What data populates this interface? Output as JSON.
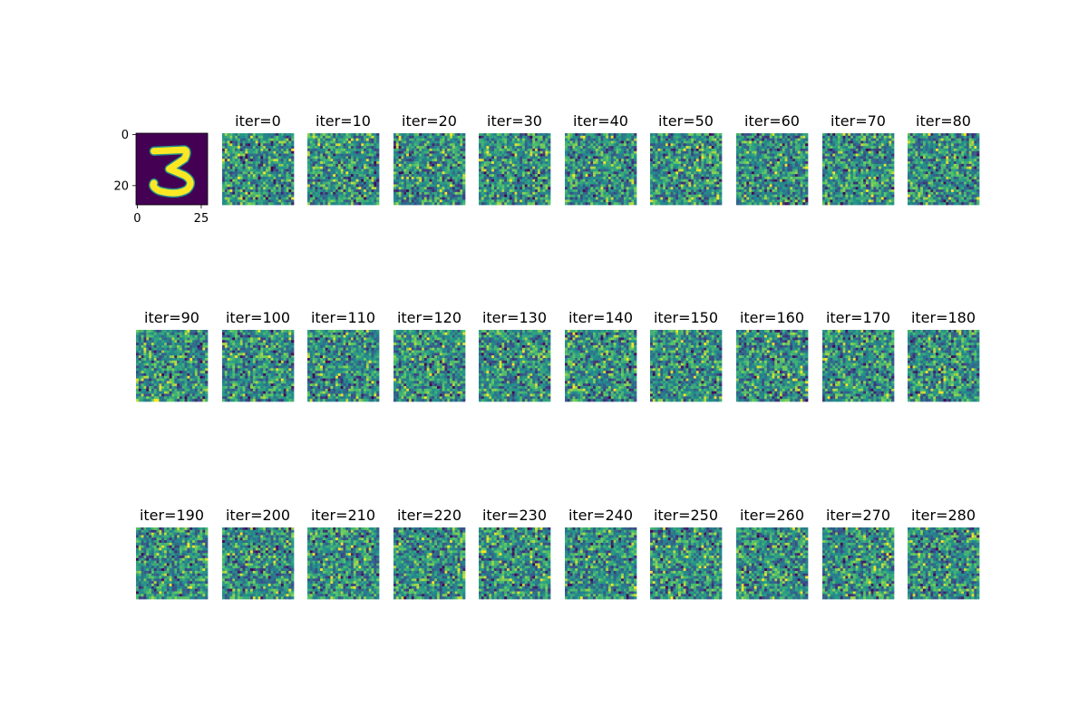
{
  "chart_data": {
    "type": "heatmap",
    "layout": {
      "rows": 3,
      "cols": 10
    },
    "colormap": "viridis",
    "colormap_stops": [
      "#440154",
      "#3b528b",
      "#21918c",
      "#5ec962",
      "#fde725"
    ],
    "original": {
      "title": "",
      "content": "digit 3",
      "grid_size": 28,
      "xticks": [
        "0",
        "25"
      ],
      "yticks": [
        "0",
        "20"
      ],
      "background_color": "#440154",
      "digit_color": "#fde725"
    },
    "noise_panels": [
      {
        "title": "iter=0"
      },
      {
        "title": "iter=10"
      },
      {
        "title": "iter=20"
      },
      {
        "title": "iter=30"
      },
      {
        "title": "iter=40"
      },
      {
        "title": "iter=50"
      },
      {
        "title": "iter=60"
      },
      {
        "title": "iter=70"
      },
      {
        "title": "iter=80"
      },
      {
        "title": "iter=90"
      },
      {
        "title": "iter=100"
      },
      {
        "title": "iter=110"
      },
      {
        "title": "iter=120"
      },
      {
        "title": "iter=130"
      },
      {
        "title": "iter=140"
      },
      {
        "title": "iter=150"
      },
      {
        "title": "iter=160"
      },
      {
        "title": "iter=170"
      },
      {
        "title": "iter=180"
      },
      {
        "title": "iter=190"
      },
      {
        "title": "iter=200"
      },
      {
        "title": "iter=210"
      },
      {
        "title": "iter=220"
      },
      {
        "title": "iter=230"
      },
      {
        "title": "iter=240"
      },
      {
        "title": "iter=250"
      },
      {
        "title": "iter=260"
      },
      {
        "title": "iter=270"
      },
      {
        "title": "iter=280"
      }
    ],
    "noise_grid_size": 28
  }
}
